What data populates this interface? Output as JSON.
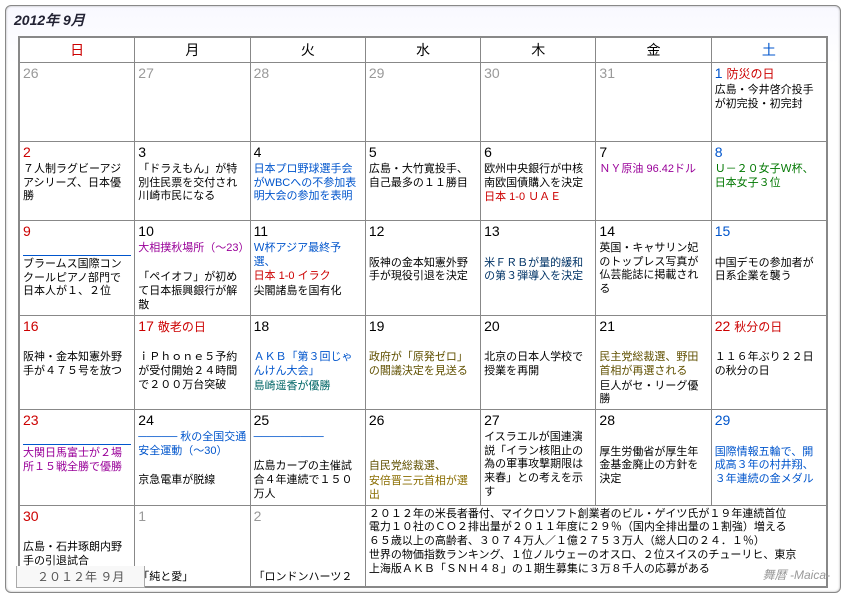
{
  "title": "2012年 9月",
  "weekdays": [
    "日",
    "月",
    "火",
    "水",
    "木",
    "金",
    "土"
  ],
  "grid": [
    [
      {
        "n": "26",
        "cls": "prev",
        "events": []
      },
      {
        "n": "27",
        "cls": "prev",
        "events": []
      },
      {
        "n": "28",
        "cls": "prev",
        "events": []
      },
      {
        "n": "29",
        "cls": "prev",
        "events": []
      },
      {
        "n": "30",
        "cls": "prev",
        "events": []
      },
      {
        "n": "31",
        "cls": "prev",
        "events": []
      },
      {
        "n": "1",
        "cls": "sat",
        "holiday": "防災の日",
        "events": [
          {
            "t": "広島・今井啓介投手が初完投・初完封",
            "c": "c-black"
          }
        ]
      }
    ],
    [
      {
        "n": "2",
        "cls": "sun",
        "events": [
          {
            "t": "７人制ラグビーアジアシリーズ、日本優勝",
            "c": "c-black"
          }
        ]
      },
      {
        "n": "3",
        "events": [
          {
            "t": "「ドラえもん」が特別住民票を交付され川崎市民になる",
            "c": "c-black"
          }
        ]
      },
      {
        "n": "4",
        "events": [
          {
            "t": "日本プロ野球選手会がWBCへの不参加表明大会の参加を表明",
            "c": "c-blue"
          }
        ]
      },
      {
        "n": "5",
        "events": [
          {
            "t": "広島・大竹寛投手、自己最多の１１勝目",
            "c": "c-black"
          }
        ]
      },
      {
        "n": "6",
        "events": [
          {
            "t": "欧州中央銀行が中核南欧国債購入を決定",
            "c": "c-black"
          },
          {
            "t": "日本 1-0 ＵＡＥ",
            "c": "c-red"
          }
        ]
      },
      {
        "n": "7",
        "events": [
          {
            "t": "ＮＹ原油 96.42ドル",
            "c": "c-purple"
          }
        ]
      },
      {
        "n": "8",
        "cls": "sat",
        "events": [
          {
            "t": "Ｕ－２０女子Ｗ杯、日本女子３位",
            "c": "c-green"
          }
        ]
      }
    ],
    [
      {
        "n": "9",
        "cls": "sun",
        "hr": true,
        "events": [
          {
            "t": "ブラームス国際コンクールピアノ部門で日本人が１、２位",
            "c": "c-black"
          }
        ]
      },
      {
        "n": "10",
        "events": [
          {
            "t": "大相撲秋場所（〜23）",
            "c": "c-purple"
          },
          {
            "t": "",
            "c": ""
          },
          {
            "t": "「ペイオフ」が初めて日本振興銀行が解散",
            "c": "c-black"
          }
        ]
      },
      {
        "n": "11",
        "events": [
          {
            "t": "Ｗ杯アジア最終予選、",
            "c": "c-blue"
          },
          {
            "t": "日本 1-0 イラク",
            "c": "c-red"
          },
          {
            "t": "尖閣諸島を国有化",
            "c": "c-black"
          }
        ]
      },
      {
        "n": "12",
        "events": [
          {
            "t": "",
            "c": ""
          },
          {
            "t": "阪神の金本知憲外野手が現役引退を決定",
            "c": "c-black"
          }
        ]
      },
      {
        "n": "13",
        "events": [
          {
            "t": "",
            "c": ""
          },
          {
            "t": "米ＦＲＢが量的緩和の第３弾導入を決定",
            "c": "c-dkblue"
          }
        ]
      },
      {
        "n": "14",
        "events": [
          {
            "t": "英国・キャサリン妃のトップレス写真が仏芸能誌に掲載される",
            "c": "c-black"
          }
        ]
      },
      {
        "n": "15",
        "cls": "sat",
        "events": [
          {
            "t": "",
            "c": ""
          },
          {
            "t": "中国デモの参加者が日系企業を襲う",
            "c": "c-black"
          }
        ]
      }
    ],
    [
      {
        "n": "16",
        "cls": "sun",
        "events": [
          {
            "t": "",
            "c": ""
          },
          {
            "t": "阪神・金本知憲外野手が４７５号を放つ",
            "c": "c-black"
          }
        ]
      },
      {
        "n": "17",
        "cls": "sun",
        "holiday": "敬老の日",
        "events": [
          {
            "t": "",
            "c": ""
          },
          {
            "t": "ｉＰｈｏｎｅ５予約が受付開始２４時間で２００万台突破",
            "c": "c-black"
          }
        ]
      },
      {
        "n": "18",
        "events": [
          {
            "t": "",
            "c": ""
          },
          {
            "t": "ＡＫＢ「第３回じゃんけん大会」",
            "c": "c-blue"
          },
          {
            "t": "島崎遥香が優勝",
            "c": "c-teal"
          }
        ]
      },
      {
        "n": "19",
        "events": [
          {
            "t": "",
            "c": ""
          },
          {
            "t": "政府が「原発ゼロ」の閣議決定を見送る",
            "c": "c-olive"
          }
        ]
      },
      {
        "n": "20",
        "events": [
          {
            "t": "",
            "c": ""
          },
          {
            "t": "北京の日本人学校で授業を再開",
            "c": "c-black"
          }
        ]
      },
      {
        "n": "21",
        "events": [
          {
            "t": "",
            "c": ""
          },
          {
            "t": "民主党総裁選、野田首相が再選される",
            "c": "c-olive"
          },
          {
            "t": "巨人がセ・リーグ優勝",
            "c": "c-black"
          }
        ]
      },
      {
        "n": "22",
        "cls": "sun",
        "holiday": "秋分の日",
        "events": [
          {
            "t": "",
            "c": ""
          },
          {
            "t": "１１６年ぶり２２日の秋分の日",
            "c": "c-black"
          }
        ]
      }
    ],
    [
      {
        "n": "23",
        "cls": "sun",
        "hr": true,
        "events": [
          {
            "t": "大関日馬富士が２場所１５戦全勝で優勝",
            "c": "c-purple"
          }
        ]
      },
      {
        "n": "24",
        "events": [
          {
            "t": "───── 秋の全国交通安全運動（〜30）",
            "c": "c-blue"
          },
          {
            "t": "",
            "c": ""
          },
          {
            "t": "京急電車が脱線",
            "c": "c-black"
          }
        ]
      },
      {
        "n": "25",
        "events": [
          {
            "t": "─────────",
            "c": "c-blue"
          },
          {
            "t": "",
            "c": ""
          },
          {
            "t": "広島カープの主催試合４年連続で１５０万人",
            "c": "c-black"
          }
        ]
      },
      {
        "n": "26",
        "events": [
          {
            "t": "",
            "c": ""
          },
          {
            "t": "",
            "c": ""
          },
          {
            "t": "自民党総裁選、",
            "c": "c-olive"
          },
          {
            "t": "安倍晋三元首相が選出",
            "c": "c-brown"
          }
        ]
      },
      {
        "n": "27",
        "events": [
          {
            "t": "イスラエルが国連演説「イラン核阻止の為の軍事攻撃期限は来春」との考えを示す",
            "c": "c-black"
          }
        ]
      },
      {
        "n": "28",
        "events": [
          {
            "t": "",
            "c": ""
          },
          {
            "t": "厚生労働省が厚生年金基金廃止の方針を決定",
            "c": "c-black"
          }
        ]
      },
      {
        "n": "29",
        "cls": "sat",
        "events": [
          {
            "t": "",
            "c": ""
          },
          {
            "t": "国際情報五輪で、開成高３年の村井翔、３年連続の金メダル",
            "c": "c-blue"
          }
        ]
      }
    ]
  ],
  "last_row": {
    "cells": [
      {
        "n": "30",
        "cls": "sun",
        "events": [
          {
            "t": "",
            "c": ""
          },
          {
            "t": "広島・石井琢朗内野手の引退試合",
            "c": "c-black"
          }
        ]
      },
      {
        "n": "1",
        "cls": "prev",
        "events": [
          {
            "t": "",
            "c": ""
          },
          {
            "t": "",
            "c": ""
          },
          {
            "t": "",
            "c": ""
          },
          {
            "t": "「純と愛」",
            "c": "c-black"
          }
        ]
      },
      {
        "n": "2",
        "cls": "prev",
        "events": [
          {
            "t": "",
            "c": ""
          },
          {
            "t": "",
            "c": ""
          },
          {
            "t": "",
            "c": ""
          },
          {
            "t": "「ロンドンハーツ２",
            "c": "c-black"
          }
        ]
      }
    ],
    "notes": [
      "２０１２年の米長者番付、マイクロソフト創業者のビル・ゲイツ氏が１９年連続首位",
      "電力１０社のＣＯ２排出量が２０１１年度に２９％（国内全排出量の１割強）増える",
      "６５歳以上の高齢者、３０７４万人／１億２７５３万人（総人口の２４．１％）",
      "世界の物価指数ランキング、１位ノルウェーのオスロ、２位スイスのチューリヒ、東京",
      "上海版ＡＫＢ「ＳＮＨ４８」の１期生募集に３万８千人の応募がある"
    ]
  },
  "footer_tab": "２０１２年 ９月",
  "brand": "舞暦 -Maica-"
}
